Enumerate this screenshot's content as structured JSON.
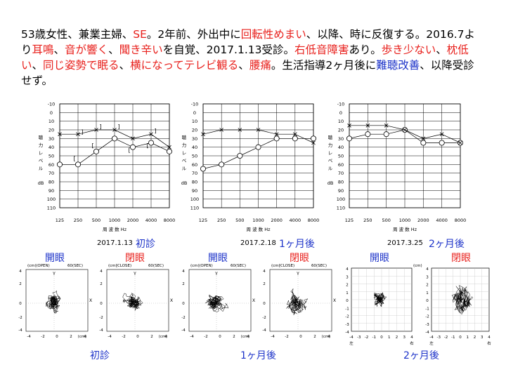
{
  "text": {
    "segments": [
      {
        "t": "53歳女性、兼業主婦、",
        "c": "k"
      },
      {
        "t": "SE",
        "c": "r"
      },
      {
        "t": "。2年前、外出中に",
        "c": "k"
      },
      {
        "t": "回転性めまい",
        "c": "r"
      },
      {
        "t": "、以降、時に反復する。2016.7より",
        "c": "k"
      },
      {
        "t": "耳鳴",
        "c": "r"
      },
      {
        "t": "、",
        "c": "k"
      },
      {
        "t": "音が響く",
        "c": "r"
      },
      {
        "t": "、",
        "c": "k"
      },
      {
        "t": "聞き辛い",
        "c": "r"
      },
      {
        "t": "を自覚、2017.1.13受診。",
        "c": "k"
      },
      {
        "t": "右低音障害",
        "c": "r"
      },
      {
        "t": "あり。",
        "c": "k"
      },
      {
        "t": "歩き少ない",
        "c": "r"
      },
      {
        "t": "、",
        "c": "k"
      },
      {
        "t": "枕低い",
        "c": "r"
      },
      {
        "t": "、",
        "c": "k"
      },
      {
        "t": "同じ姿勢で眠る",
        "c": "r"
      },
      {
        "t": "、",
        "c": "k"
      },
      {
        "t": "横になってテレビ観る",
        "c": "r"
      },
      {
        "t": "、",
        "c": "k"
      },
      {
        "t": "腰痛",
        "c": "r"
      },
      {
        "t": "。生活指導2ヶ月後に",
        "c": "k"
      },
      {
        "t": "難聴改善",
        "c": "b"
      },
      {
        "t": "、以降受診せず。",
        "c": "k"
      }
    ]
  },
  "audiogram_common": {
    "y_ticks": [
      "-10",
      "0",
      "10",
      "20",
      "30",
      "40",
      "50",
      "60",
      "70",
      "80",
      "90",
      "100",
      "110"
    ],
    "x_ticks": [
      "125",
      "250",
      "500",
      "1000",
      "2000",
      "4000",
      "8000"
    ],
    "y_axis_label": [
      "聴",
      "力",
      "レ",
      "ベ",
      "ル"
    ],
    "db_label": "dB",
    "x_axis_label": "周 波 数 Hz"
  },
  "audiograms": [
    {
      "date": "2017.1.13",
      "caption": "初診",
      "right_ear": [
        60,
        60,
        45,
        30,
        40,
        35,
        45
      ],
      "left_ear": [
        25,
        25,
        20,
        20,
        30,
        25,
        40
      ]
    },
    {
      "date": "2017.2.18",
      "caption": "1ヶ月後",
      "right_ear": [
        65,
        60,
        50,
        40,
        30,
        30,
        30
      ],
      "left_ear": [
        25,
        20,
        20,
        20,
        25,
        25,
        35
      ]
    },
    {
      "date": "2017.3.25",
      "caption": "2ヶ月後",
      "right_ear": [
        30,
        25,
        25,
        20,
        35,
        35,
        35
      ],
      "left_ear": [
        15,
        15,
        15,
        20,
        30,
        25,
        35
      ]
    }
  ],
  "stabilometry": {
    "eyes_open": "開眼",
    "eyes_closed": "閉眼",
    "open_tag": "(OPEN)",
    "close_tag": "(CLOSE)",
    "sec_tag": "60(SEC)",
    "captions": [
      "初診",
      "1ヶ月後",
      "2ヶ月後"
    ],
    "axis_ticks": [
      "-4",
      "-2",
      "0",
      "2",
      "4"
    ],
    "cm_label": "(cm)",
    "left_label": "左",
    "right_label": "右"
  },
  "colors": {
    "red": "#e8201c",
    "blue": "#1d33c9"
  }
}
